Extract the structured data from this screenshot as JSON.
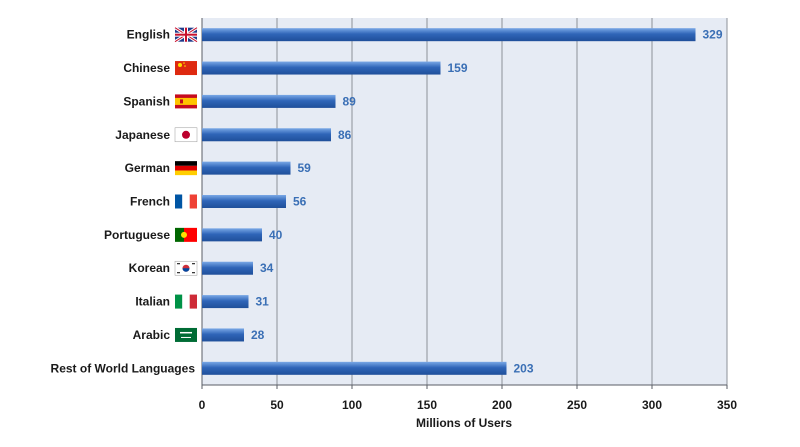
{
  "chart_data": {
    "type": "bar",
    "orientation": "horizontal",
    "categories": [
      "English",
      "Chinese",
      "Spanish",
      "Japanese",
      "German",
      "French",
      "Portuguese",
      "Korean",
      "Italian",
      "Arabic",
      "Rest of World Languages"
    ],
    "flag_icons": [
      "uk-flag-icon",
      "china-flag-icon",
      "spain-flag-icon",
      "japan-flag-icon",
      "germany-flag-icon",
      "france-flag-icon",
      "portugal-flag-icon",
      "south-korea-flag-icon",
      "italy-flag-icon",
      "saudi-arabia-flag-icon",
      ""
    ],
    "values": [
      329,
      159,
      89,
      86,
      59,
      56,
      40,
      34,
      31,
      28,
      203
    ],
    "xlabel": "Millions of Users",
    "ylabel": "",
    "xlim": [
      0,
      350
    ],
    "ticks": [
      0,
      50,
      100,
      150,
      200,
      250,
      300,
      350
    ],
    "grid": true,
    "legend": "none",
    "colors": {
      "bar": "#2f65b8",
      "bar_light": "#6f9fe0",
      "plot_bg": "#e6ebf4",
      "grid": "#8c9099",
      "value_text": "#3a6fb5"
    }
  }
}
